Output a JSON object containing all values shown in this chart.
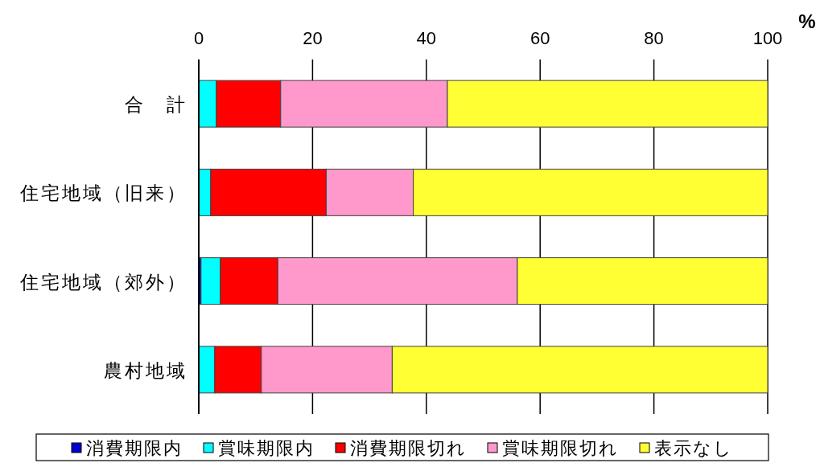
{
  "chart_data": {
    "type": "bar",
    "orientation": "horizontal",
    "stacked": true,
    "xlabel": "%",
    "categories": [
      "合　計",
      "住宅地域（旧来）",
      "住宅地域（郊外）",
      "農村地域"
    ],
    "series": [
      {
        "name": "消費期限内",
        "color": "#0000cc",
        "values": [
          0,
          0,
          0.4,
          0
        ]
      },
      {
        "name": "賞味期限内",
        "color": "#00ffff",
        "values": [
          3.1,
          2.1,
          3.4,
          2.8
        ]
      },
      {
        "name": "消費期限切れ",
        "color": "#ff0000",
        "values": [
          11.3,
          20.3,
          10.1,
          8.2
        ]
      },
      {
        "name": "賞味期限切れ",
        "color": "#ff99cc",
        "values": [
          29.3,
          15.3,
          42.1,
          23.0
        ]
      },
      {
        "name": "表示なし",
        "color": "#ffff33",
        "values": [
          56.3,
          62.3,
          44.0,
          66.0
        ]
      }
    ],
    "xlim": [
      0,
      100
    ],
    "xticks": [
      0,
      20,
      40,
      60,
      80,
      100
    ],
    "grid": "x",
    "legend": "bottom"
  }
}
